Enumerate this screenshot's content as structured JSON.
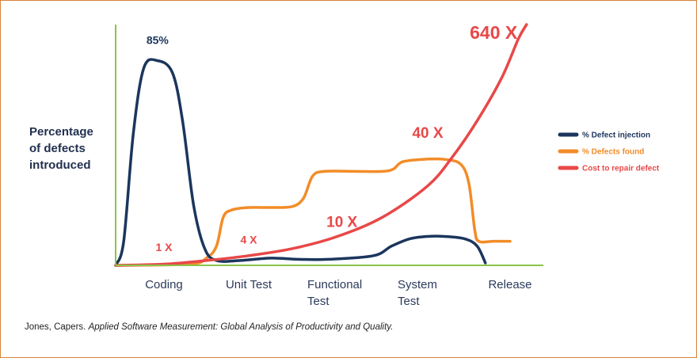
{
  "caption": {
    "author": "Jones, Capers.",
    "title": "Applied Software Measurement: Global Analysis of Productivity and Quality."
  },
  "chart_data": {
    "type": "line",
    "ylabel": [
      "Percentage",
      "of defects",
      "introduced"
    ],
    "xlabel": "",
    "categories": [
      [
        "Coding"
      ],
      [
        "Unit Test"
      ],
      [
        "Functional",
        "Test"
      ],
      [
        "System",
        "Test"
      ],
      [
        "Release"
      ]
    ],
    "axis_color": "#8bc34a",
    "grid": false,
    "legend_position": "right",
    "x_range": [
      -0.6,
      4.6
    ],
    "y_range": [
      0,
      100
    ],
    "series": [
      {
        "name": "% Defect injection",
        "color": "#1b365d",
        "points": [
          [
            -0.6,
            0
          ],
          [
            -0.5,
            10
          ],
          [
            -0.38,
            55
          ],
          [
            -0.25,
            82
          ],
          [
            -0.08,
            85
          ],
          [
            0.1,
            80
          ],
          [
            0.22,
            60
          ],
          [
            0.35,
            25
          ],
          [
            0.48,
            7
          ],
          [
            0.62,
            2
          ],
          [
            0.9,
            2
          ],
          [
            1.25,
            3
          ],
          [
            1.55,
            2.5
          ],
          [
            1.9,
            2.5
          ],
          [
            2.4,
            4
          ],
          [
            2.6,
            8
          ],
          [
            2.8,
            11
          ],
          [
            3.0,
            12
          ],
          [
            3.2,
            12
          ],
          [
            3.45,
            11
          ],
          [
            3.6,
            8
          ],
          [
            3.7,
            1
          ]
        ]
      },
      {
        "name": "% Defects found",
        "color": "#f28c28",
        "points": [
          [
            -0.6,
            0
          ],
          [
            0.3,
            0.5
          ],
          [
            0.5,
            3
          ],
          [
            0.62,
            8
          ],
          [
            0.7,
            20
          ],
          [
            0.8,
            23
          ],
          [
            1.0,
            24
          ],
          [
            1.3,
            24
          ],
          [
            1.5,
            24.5
          ],
          [
            1.62,
            28
          ],
          [
            1.72,
            37
          ],
          [
            1.85,
            39
          ],
          [
            2.2,
            39
          ],
          [
            2.5,
            39
          ],
          [
            2.62,
            40
          ],
          [
            2.72,
            43
          ],
          [
            2.95,
            44
          ],
          [
            3.2,
            44
          ],
          [
            3.4,
            42
          ],
          [
            3.5,
            34
          ],
          [
            3.57,
            15
          ],
          [
            3.62,
            10
          ],
          [
            3.8,
            10
          ],
          [
            4.0,
            10
          ]
        ]
      },
      {
        "name": "Cost to repair defect",
        "color": "#e84848",
        "points": [
          [
            -0.6,
            0
          ],
          [
            0.0,
            0.5
          ],
          [
            0.5,
            2
          ],
          [
            1.0,
            4
          ],
          [
            1.5,
            7
          ],
          [
            2.0,
            12
          ],
          [
            2.5,
            20
          ],
          [
            3.0,
            33
          ],
          [
            3.3,
            45
          ],
          [
            3.6,
            60
          ],
          [
            3.9,
            78
          ],
          [
            4.1,
            94
          ],
          [
            4.2,
            100
          ]
        ]
      }
    ],
    "labels": [
      {
        "text": "85%",
        "x": -0.08,
        "y": 92,
        "color": "#1b365d",
        "size": 14
      },
      {
        "text": "1 X",
        "x": 0.0,
        "y": 6,
        "color": "#e84848",
        "size": 14
      },
      {
        "text": "4 X",
        "x": 1.0,
        "y": 9,
        "color": "#e84848",
        "size": 14
      },
      {
        "text": "10 X",
        "x": 2.05,
        "y": 16,
        "color": "#e84848",
        "size": 19
      },
      {
        "text": "40 X",
        "x": 3.0,
        "y": 53,
        "color": "#e84848",
        "size": 19
      },
      {
        "text": "640 X",
        "x": 3.8,
        "y": 94,
        "color": "#e84848",
        "size": 23
      }
    ]
  }
}
